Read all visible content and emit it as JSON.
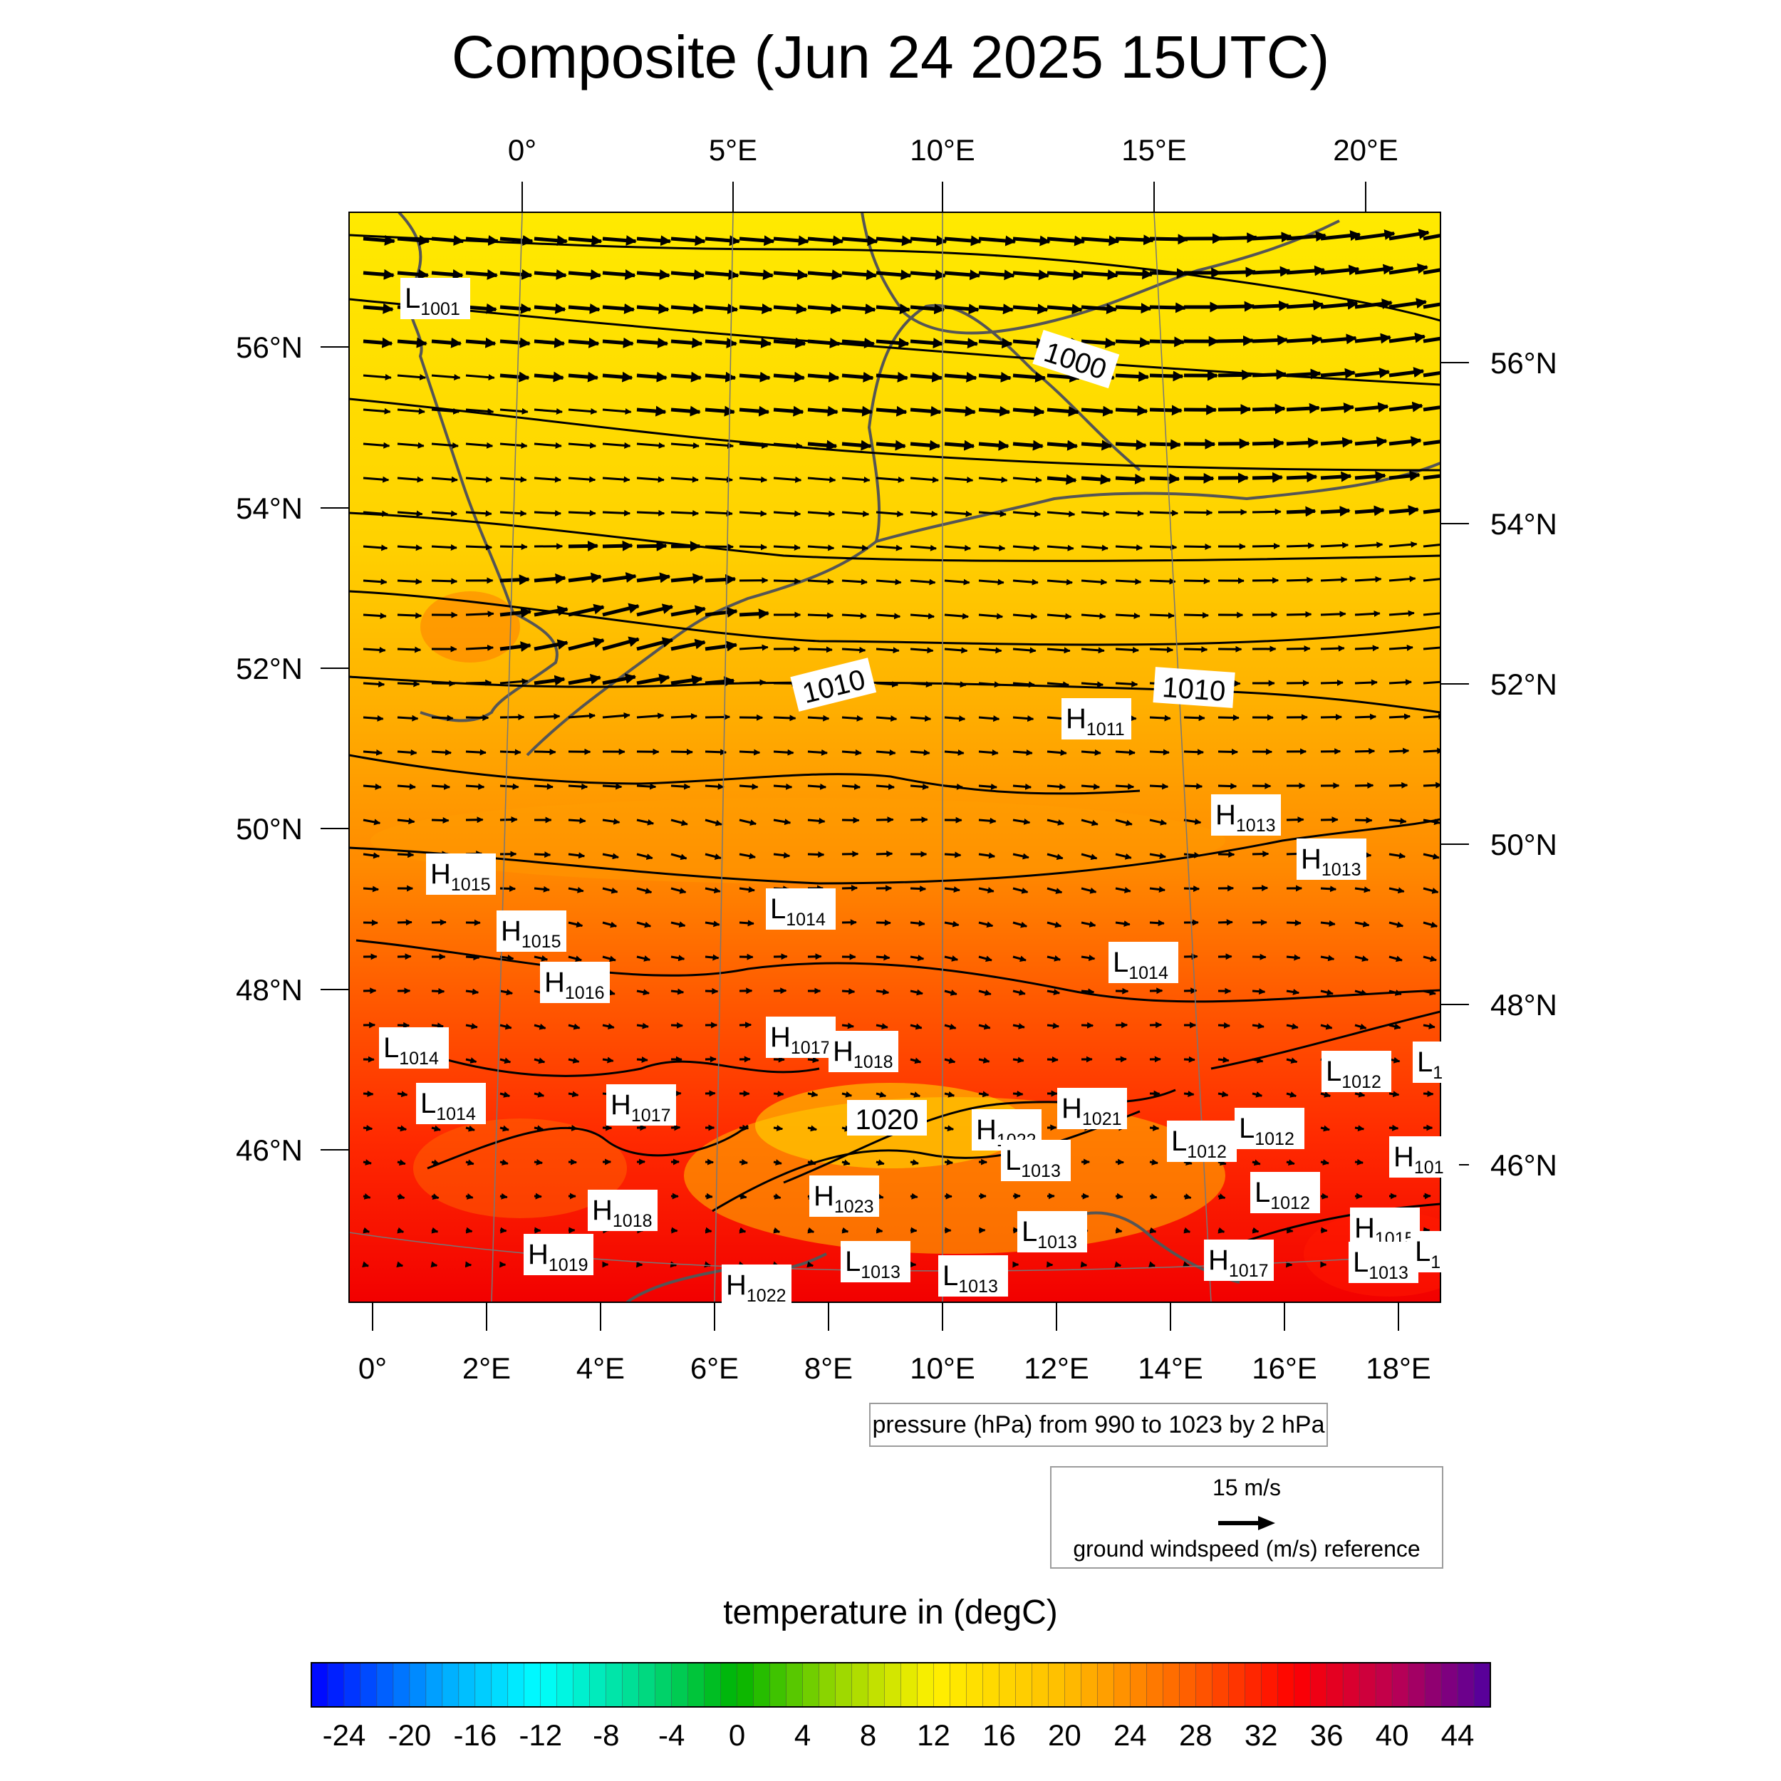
{
  "title": "Composite (Jun 24 2025 15UTC)",
  "top_lon_ticks": [
    "0°",
    "5°E",
    "10°E",
    "15°E",
    "20°E"
  ],
  "bottom_lon_ticks": [
    "0°",
    "2°E",
    "4°E",
    "6°E",
    "8°E",
    "10°E",
    "12°E",
    "14°E",
    "16°E",
    "18°E"
  ],
  "left_lat_ticks": [
    "56°N",
    "54°N",
    "52°N",
    "50°N",
    "48°N",
    "46°N"
  ],
  "right_lat_ticks": [
    "56°N",
    "54°N",
    "52°N",
    "50°N",
    "48°N",
    "46°N"
  ],
  "contour_info": "pressure (hPa) from 990 to 1023 by 2 hPa",
  "vector_ref": {
    "label": "15 m/s",
    "description": "ground windspeed (m/s) reference"
  },
  "colorbar": {
    "title": "temperature in (degC)",
    "min": -26,
    "max": 46,
    "step": 1,
    "labels": [
      "-24",
      "-20",
      "-16",
      "-12",
      "-8",
      "-4",
      "0",
      "4",
      "8",
      "12",
      "16",
      "20",
      "24",
      "28",
      "32",
      "36",
      "40",
      "44"
    ]
  },
  "contour_labels": [
    "1000",
    "1010",
    "1010",
    "1020"
  ],
  "pressure_centers": [
    {
      "t": "L",
      "v": "1001"
    },
    {
      "t": "H",
      "v": "1011"
    },
    {
      "t": "H",
      "v": "1013"
    },
    {
      "t": "H",
      "v": "1013"
    },
    {
      "t": "H",
      "v": "1015"
    },
    {
      "t": "L",
      "v": "1014"
    },
    {
      "t": "H",
      "v": "1015"
    },
    {
      "t": "L",
      "v": "1014"
    },
    {
      "t": "H",
      "v": "1016"
    },
    {
      "t": "L",
      "v": "1014"
    },
    {
      "t": "H",
      "v": "1017"
    },
    {
      "t": "H",
      "v": "1018"
    },
    {
      "t": "L",
      "v": "1012"
    },
    {
      "t": "L",
      "v": "1"
    },
    {
      "t": "L",
      "v": "1014"
    },
    {
      "t": "H",
      "v": "1017"
    },
    {
      "t": "H",
      "v": "1021"
    },
    {
      "t": "H",
      "v": "1022"
    },
    {
      "t": "L",
      "v": "1012"
    },
    {
      "t": "L",
      "v": "1012"
    },
    {
      "t": "L",
      "v": "1013"
    },
    {
      "t": "H",
      "v": "101"
    },
    {
      "t": "L",
      "v": "1012"
    },
    {
      "t": "H",
      "v": "1018"
    },
    {
      "t": "H",
      "v": "1023"
    },
    {
      "t": "H",
      "v": "1015"
    },
    {
      "t": "L",
      "v": "1013"
    },
    {
      "t": "H",
      "v": "1019"
    },
    {
      "t": "L",
      "v": "1013"
    },
    {
      "t": "L",
      "v": "1013"
    },
    {
      "t": "H",
      "v": "1017"
    },
    {
      "t": "H",
      "v": "1022"
    },
    {
      "t": "L",
      "v": "1013"
    },
    {
      "t": "L",
      "v": "1"
    }
  ]
}
